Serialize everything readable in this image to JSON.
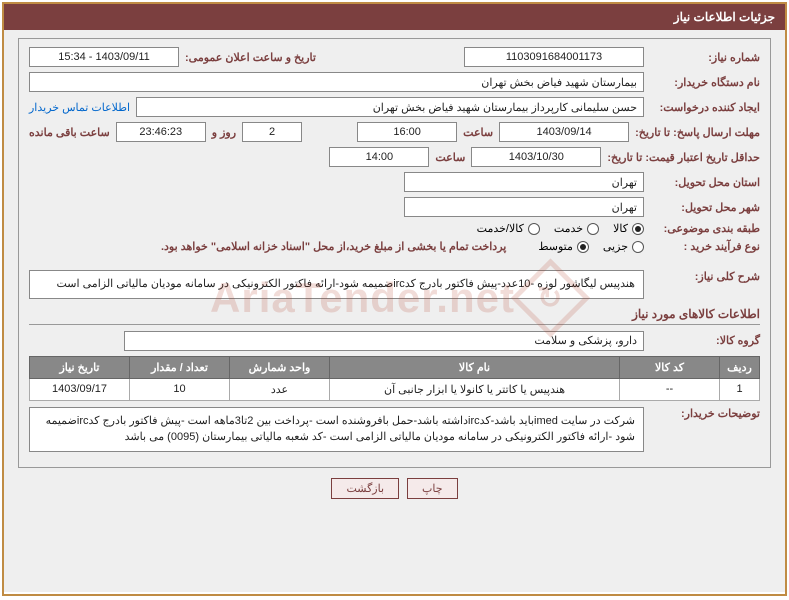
{
  "header": {
    "title": "جزئیات اطلاعات نیاز"
  },
  "fields": {
    "need_number_label": "شماره نیاز:",
    "need_number": "1103091684001173",
    "announce_label": "تاریخ و ساعت اعلان عمومی:",
    "announce_value": "1403/09/11 - 15:34",
    "buyer_org_label": "نام دستگاه خریدار:",
    "buyer_org": "بیمارستان شهید فیاض بخش تهران",
    "requester_label": "ایجاد کننده درخواست:",
    "requester": "حسن سلیمانی کارپرداز بیمارستان شهید فیاض بخش تهران",
    "contact_link": "اطلاعات تماس خریدار",
    "deadline_label": "مهلت ارسال پاسخ: تا تاریخ:",
    "deadline_date": "1403/09/14",
    "time_label": "ساعت",
    "deadline_time": "16:00",
    "remaining_days": "2",
    "days_and_label": "روز و",
    "remaining_time": "23:46:23",
    "remaining_label": "ساعت باقی مانده",
    "validity_label": "حداقل تاریخ اعتبار قیمت: تا تاریخ:",
    "validity_date": "1403/10/30",
    "validity_time": "14:00",
    "province_label": "استان محل تحویل:",
    "province": "تهران",
    "city_label": "شهر محل تحویل:",
    "city": "تهران",
    "category_label": "طبقه بندی موضوعی:",
    "process_label": "نوع فرآیند خرید :",
    "payment_note": "پرداخت تمام یا بخشی از مبلغ خرید،از محل \"اسناد خزانه اسلامی\" خواهد بود."
  },
  "category_options": [
    {
      "label": "کالا",
      "checked": true
    },
    {
      "label": "خدمت",
      "checked": false
    },
    {
      "label": "کالا/خدمت",
      "checked": false
    }
  ],
  "process_options": [
    {
      "label": "جزیی",
      "checked": false
    },
    {
      "label": "متوسط",
      "checked": true
    }
  ],
  "description": {
    "label": "شرح کلی نیاز:",
    "text": "هندپیس لیگاشور لوزه -10عدد-پیش فاکتور بادرج کدircضمیمه شود-ارائه فاکتور الکترونیکی در سامانه مودیان مالیاتی الزامی است"
  },
  "goods_section": {
    "title": "اطلاعات کالاهای مورد نیاز",
    "group_label": "گروه کالا:",
    "group_value": "دارو، پزشکی و سلامت"
  },
  "table": {
    "headers": [
      "ردیف",
      "کد کالا",
      "نام کالا",
      "واحد شمارش",
      "تعداد / مقدار",
      "تاریخ نیاز"
    ],
    "rows": [
      [
        "1",
        "--",
        "هندپیس یا کاتتر یا کانولا یا ابزار جانبی آن",
        "عدد",
        "10",
        "1403/09/17"
      ]
    ]
  },
  "buyer_notes": {
    "label": "توضیحات خریدار:",
    "text": "شرکت در سایت imedباید باشد-کدircداشته باشد-حمل بافروشنده است -پرداخت بین 2تا3ماهه است -پیش فاکتور بادرج کدircضمیمه شود -ارائه فاکتور الکترونیکی در سامانه مودیان مالیاتی الزامی است -کد شعبه مالیاتی بیمارستان (0095) می باشد"
  },
  "buttons": {
    "print": "چاپ",
    "back": "بازگشت"
  },
  "watermark": "AriaTender.net"
}
